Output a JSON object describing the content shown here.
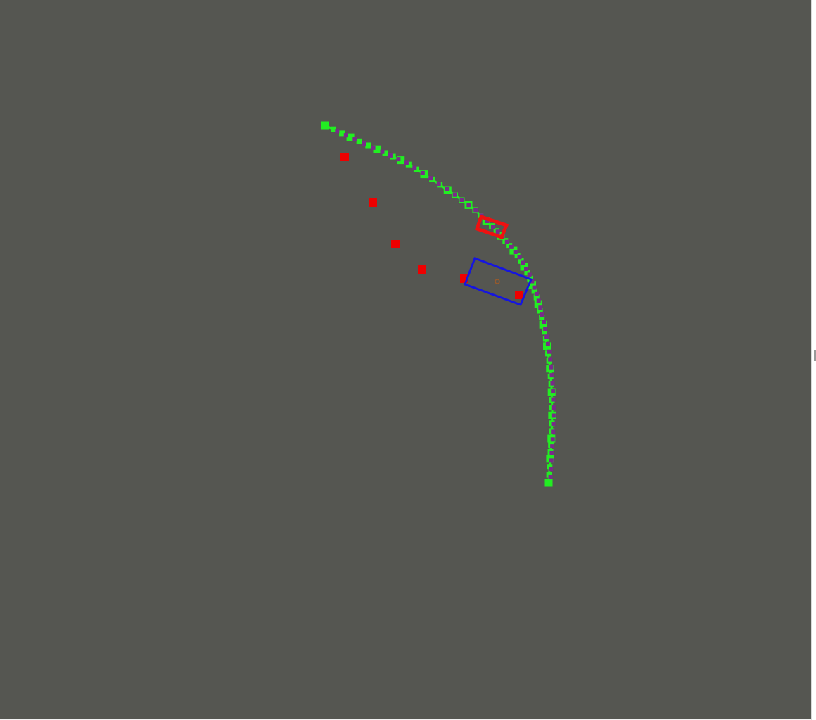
{
  "viewer": {
    "background_color": "#555651",
    "border_color": "#ffffff"
  },
  "colors": {
    "path_green": "#22ee22",
    "path_purple": "#7a2a8a",
    "obstacle_red": "#ee0000",
    "ego_blue": "#1515e0",
    "target_red": "#ee1111",
    "center_marker": "#9a5a2a"
  },
  "icons": {
    "ego_vehicle": "rectangle-outline-icon",
    "target_vehicle": "rectangle-outline-icon",
    "obstacle": "square-marker-icon",
    "center": "dot-marker-icon"
  }
}
